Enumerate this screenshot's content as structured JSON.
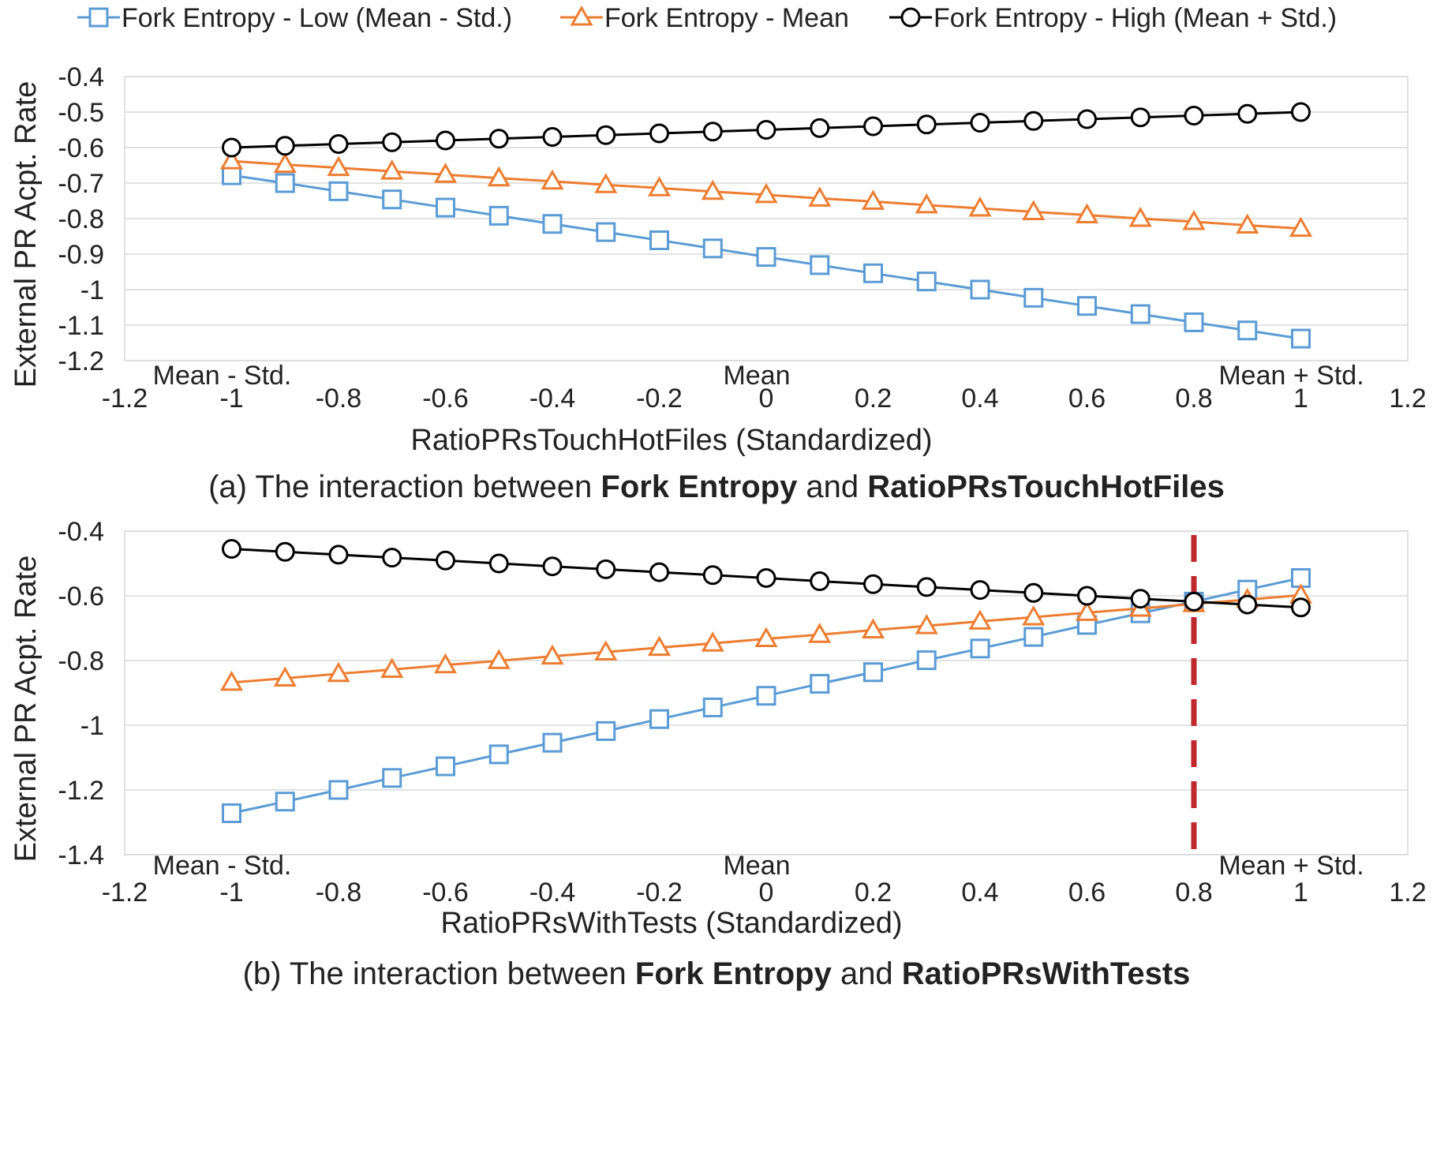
{
  "legend": [
    {
      "name": "Fork Entropy - Low (Mean - Std.)",
      "color": "#5B9BD5",
      "marker": "square"
    },
    {
      "name": "Fork Entropy - Mean",
      "color": "#ED7D31",
      "marker": "triangle"
    },
    {
      "name": "Fork Entropy - High (Mean + Std.)",
      "color": "#000000",
      "marker": "circle"
    }
  ],
  "chart_data": [
    {
      "type": "line",
      "xlabel": "RatioPRsTouchHotFiles (Standardized)",
      "ylabel": "External PR Acpt. Rate",
      "caption": {
        "prefix": "(a) The interaction between ",
        "bold1": "Fork Entropy",
        "middle": " and ",
        "bold2": "RatioPRsTouchHotFiles"
      },
      "xlim": [
        -1.2,
        1.2
      ],
      "ylim": [
        -1.2,
        -0.4
      ],
      "xticks": [
        "-1.2",
        "-1",
        "-0.8",
        "-0.6",
        "-0.4",
        "-0.2",
        "0",
        "0.2",
        "0.4",
        "0.6",
        "0.8",
        "1",
        "1.2"
      ],
      "yticks": [
        "-0.4",
        "-0.5",
        "-0.6",
        "-0.7",
        "-0.8",
        "-0.9",
        "-1",
        "-1.1",
        "-1.2"
      ],
      "annotations": [
        {
          "x": -1,
          "text": "Mean - Std."
        },
        {
          "x": 0,
          "text": "Mean"
        },
        {
          "x": 1,
          "text": "Mean + Std."
        }
      ],
      "grid": true,
      "x": [
        -1,
        -0.9,
        -0.8,
        -0.7,
        -0.6,
        -0.5,
        -0.4,
        -0.3,
        -0.2,
        -0.1,
        0,
        0.1,
        0.2,
        0.3,
        0.4,
        0.5,
        0.6,
        0.7,
        0.8,
        0.9,
        1
      ],
      "series": [
        {
          "name": "Fork Entropy - Low (Mean - Std.)",
          "values": [
            -0.678,
            -0.7,
            -0.723,
            -0.746,
            -0.769,
            -0.792,
            -0.815,
            -0.838,
            -0.861,
            -0.884,
            -0.908,
            -0.931,
            -0.954,
            -0.977,
            -1.0,
            -1.023,
            -1.046,
            -1.069,
            -1.092,
            -1.115,
            -1.138
          ]
        },
        {
          "name": "Fork Entropy - Mean",
          "values": [
            -0.638,
            -0.648,
            -0.657,
            -0.667,
            -0.676,
            -0.686,
            -0.695,
            -0.705,
            -0.714,
            -0.724,
            -0.733,
            -0.743,
            -0.752,
            -0.762,
            -0.771,
            -0.781,
            -0.79,
            -0.8,
            -0.809,
            -0.819,
            -0.828
          ]
        },
        {
          "name": "Fork Entropy - High (Mean + Std.)",
          "values": [
            -0.6,
            -0.595,
            -0.59,
            -0.585,
            -0.58,
            -0.575,
            -0.57,
            -0.565,
            -0.56,
            -0.555,
            -0.55,
            -0.545,
            -0.54,
            -0.535,
            -0.53,
            -0.525,
            -0.52,
            -0.515,
            -0.51,
            -0.505,
            -0.5
          ]
        }
      ]
    },
    {
      "type": "line",
      "xlabel": "RatioPRsWithTests (Standardized)",
      "ylabel": "External PR Acpt. Rate",
      "caption": {
        "prefix": "(b) The interaction between ",
        "bold1": "Fork Entropy",
        "middle": " and ",
        "bold2": "RatioPRsWithTests"
      },
      "xlim": [
        -1.2,
        1.2
      ],
      "ylim": [
        -1.4,
        -0.4
      ],
      "xticks": [
        "-1.2",
        "-1",
        "-0.8",
        "-0.6",
        "-0.4",
        "-0.2",
        "0",
        "0.2",
        "0.4",
        "0.6",
        "0.8",
        "1",
        "1.2"
      ],
      "yticks": [
        "-0.4",
        "-0.6",
        "-0.8",
        "-1",
        "-1.2",
        "-1.4"
      ],
      "annotations": [
        {
          "x": -1,
          "text": "Mean - Std."
        },
        {
          "x": 0,
          "text": "Mean"
        },
        {
          "x": 1,
          "text": "Mean + Std."
        }
      ],
      "reference_line": {
        "x": 0.8,
        "color": "#C0282D",
        "style": "dashed"
      },
      "grid": true,
      "x": [
        -1,
        -0.9,
        -0.8,
        -0.7,
        -0.6,
        -0.5,
        -0.4,
        -0.3,
        -0.2,
        -0.1,
        0,
        0.1,
        0.2,
        0.3,
        0.4,
        0.5,
        0.6,
        0.7,
        0.8,
        0.9,
        1
      ],
      "series": [
        {
          "name": "Fork Entropy - Low (Mean - Std.)",
          "values": [
            -1.272,
            -1.236,
            -1.2,
            -1.163,
            -1.127,
            -1.09,
            -1.054,
            -1.018,
            -0.981,
            -0.945,
            -0.909,
            -0.872,
            -0.836,
            -0.799,
            -0.763,
            -0.727,
            -0.69,
            -0.654,
            -0.618,
            -0.581,
            -0.545
          ]
        },
        {
          "name": "Fork Entropy - Mean",
          "values": [
            -0.868,
            -0.855,
            -0.841,
            -0.828,
            -0.814,
            -0.801,
            -0.787,
            -0.774,
            -0.76,
            -0.747,
            -0.733,
            -0.72,
            -0.706,
            -0.693,
            -0.679,
            -0.666,
            -0.652,
            -0.639,
            -0.625,
            -0.612,
            -0.598
          ]
        },
        {
          "name": "Fork Entropy - High (Mean + Std.)",
          "values": [
            -0.455,
            -0.464,
            -0.473,
            -0.482,
            -0.491,
            -0.5,
            -0.509,
            -0.518,
            -0.527,
            -0.536,
            -0.545,
            -0.555,
            -0.564,
            -0.573,
            -0.582,
            -0.591,
            -0.6,
            -0.609,
            -0.618,
            -0.627,
            -0.636
          ]
        }
      ]
    }
  ]
}
